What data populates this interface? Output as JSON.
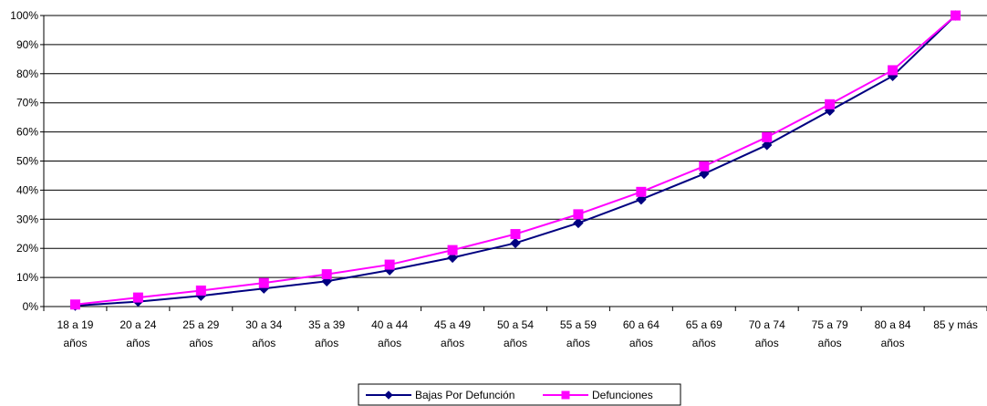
{
  "chart_data": {
    "type": "line",
    "title": "",
    "xlabel": "",
    "ylabel": "",
    "categories": [
      [
        "18 a 19",
        "años"
      ],
      [
        "20 a 24",
        "años"
      ],
      [
        "25 a 29",
        "años"
      ],
      [
        "30 a 34",
        "años"
      ],
      [
        "35 a 39",
        "años"
      ],
      [
        "40 a 44",
        "años"
      ],
      [
        "45 a 49",
        "años"
      ],
      [
        "50 a 54",
        "años"
      ],
      [
        "55 a 59",
        "años"
      ],
      [
        "60 a 64",
        "años"
      ],
      [
        "65 a 69",
        "años"
      ],
      [
        "70 a 74",
        "años"
      ],
      [
        "75 a 79",
        "años"
      ],
      [
        "80 a 84",
        "años"
      ],
      [
        "85 y más"
      ]
    ],
    "yticks": [
      "0%",
      "10%",
      "20%",
      "30%",
      "40%",
      "50%",
      "60%",
      "70%",
      "80%",
      "90%",
      "100%"
    ],
    "ylim": [
      0,
      100
    ],
    "grid": true,
    "legend_position": "bottom",
    "series": [
      {
        "name": "Bajas Por Defunción",
        "color": "#000080",
        "marker": "diamond",
        "values": [
          0.3,
          1.7,
          3.7,
          6.2,
          8.7,
          12.5,
          16.8,
          21.8,
          28.7,
          36.8,
          45.6,
          55.5,
          67.3,
          79.2,
          100
        ]
      },
      {
        "name": "Defunciones",
        "color": "#FF00FF",
        "marker": "square",
        "values": [
          0.7,
          3.1,
          5.5,
          8.1,
          11.1,
          14.4,
          19.4,
          24.9,
          31.7,
          39.4,
          48.2,
          58.2,
          69.5,
          81.2,
          100
        ]
      }
    ]
  }
}
